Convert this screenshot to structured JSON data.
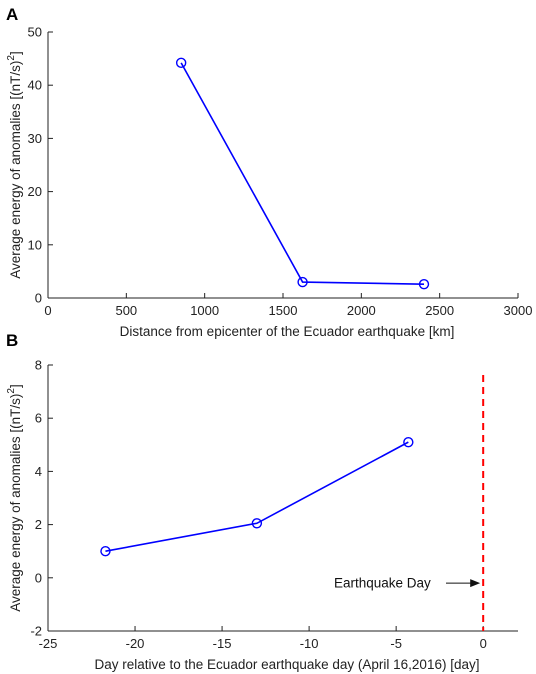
{
  "chart_data": [
    {
      "panel": "A",
      "type": "line",
      "x": [
        850,
        1625,
        2400
      ],
      "series": [
        {
          "values": [
            44.2,
            3.0,
            2.6
          ],
          "color": "#0000ff",
          "marker": "circle"
        }
      ],
      "xlabel": "Distance from epicenter of the Ecuador earthquake [km]",
      "ylabel": "Average energy of anomalies [(nT/s)",
      "ylabel_sup": "2",
      "ylabel_end": "]",
      "xlim": [
        0,
        3000
      ],
      "ylim": [
        0,
        50
      ],
      "xticks": [
        0,
        500,
        1000,
        1500,
        2000,
        2500,
        3000
      ],
      "yticks": [
        0,
        10,
        20,
        30,
        40,
        50
      ],
      "grid": false
    },
    {
      "panel": "B",
      "type": "line",
      "x": [
        -21.7,
        -13.0,
        -4.3
      ],
      "series": [
        {
          "values": [
            1.0,
            2.05,
            5.1
          ],
          "color": "#0000ff",
          "marker": "circle"
        }
      ],
      "xlabel": "Day relative to the Ecuador earthquake day (April 16,2016) [day]",
      "ylabel": "Average energy of anomalies [(nT/s)",
      "ylabel_sup": "2",
      "ylabel_end": "]",
      "xlim": [
        -25,
        2
      ],
      "ylim": [
        -2,
        8
      ],
      "xticks": [
        -25,
        -20,
        -15,
        -10,
        -5,
        0
      ],
      "yticks": [
        -2,
        0,
        2,
        4,
        6,
        8
      ],
      "grid": false,
      "vline": {
        "x": 0,
        "color": "#ff0000",
        "style": "dashed"
      },
      "annotation": {
        "text": "Earthquake Day",
        "arrow_to_x": 0,
        "arrow_y": -0.2
      }
    }
  ]
}
